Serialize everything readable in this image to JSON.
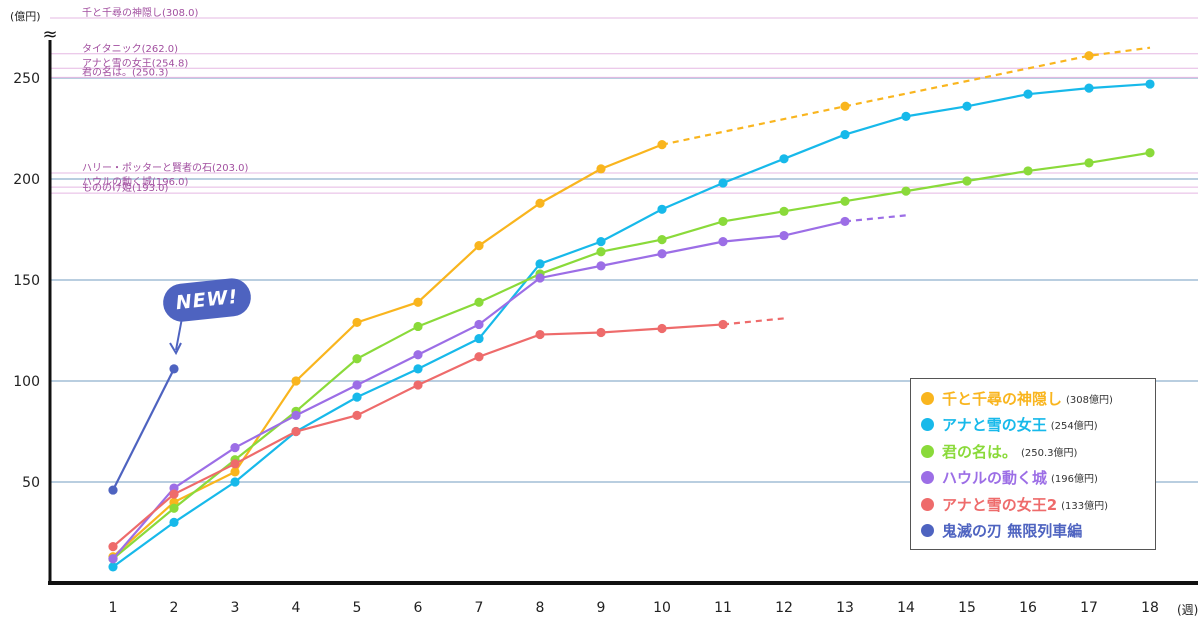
{
  "chart_data": {
    "type": "line",
    "x": [
      1,
      2,
      3,
      4,
      5,
      6,
      7,
      8,
      9,
      10,
      11,
      12,
      13,
      14,
      15,
      16,
      17,
      18
    ],
    "xticks": [
      "1",
      "2",
      "3",
      "4",
      "5",
      "6",
      "7",
      "8",
      "9",
      "10",
      "11",
      "12",
      "13",
      "14",
      "15",
      "16",
      "17",
      "18"
    ],
    "xlabel": "(週)",
    "ylabel": "(億円)",
    "ylim": [
      0,
      270
    ],
    "yticks": [
      50,
      100,
      150,
      200,
      250
    ],
    "axis_break_symbol": "≈",
    "grid": true,
    "legend_position": "bottom-right",
    "badge": "NEW!",
    "reference_lines": [
      {
        "label": "千と千尋の神隠し(308.0)",
        "value": 308.0,
        "position": "top-break"
      },
      {
        "label": "タイタニック(262.0)",
        "value": 262.0
      },
      {
        "label": "アナと雪の女王(254.8)",
        "value": 254.8
      },
      {
        "label": "君の名は。(250.3)",
        "value": 250.3
      },
      {
        "label": "ハリー・ポッターと賢者の石(203.0)",
        "value": 203.0
      },
      {
        "label": "ハウルの動く城(196.0)",
        "value": 196.0
      },
      {
        "label": "もののけ姫(193.0)",
        "value": 193.0
      }
    ],
    "series": [
      {
        "name": "千と千尋の神隠し",
        "total": "(308億円)",
        "color": "#f9b51e",
        "x": [
          1,
          2,
          3,
          4,
          5,
          6,
          7,
          8,
          9,
          10
        ],
        "values": [
          13,
          40,
          55,
          100,
          129,
          139,
          167,
          188,
          205,
          217
        ],
        "extra_points": [
          [
            13,
            236
          ],
          [
            17,
            261
          ]
        ],
        "dashed": [
          [
            10,
            217
          ],
          [
            13,
            236
          ],
          [
            17,
            261
          ],
          [
            18,
            265
          ]
        ]
      },
      {
        "name": "アナと雪の女王",
        "total": "(254億円)",
        "color": "#17b9ea",
        "x": [
          1,
          2,
          3,
          4,
          5,
          6,
          7,
          8,
          9,
          10,
          11,
          12,
          13,
          14,
          15,
          16,
          17,
          18
        ],
        "values": [
          8,
          30,
          50,
          75,
          92,
          106,
          121,
          158,
          169,
          185,
          198,
          210,
          222,
          231,
          236,
          242,
          245,
          247
        ],
        "extra_points": [],
        "dashed": []
      },
      {
        "name": "君の名は。",
        "total": "(250.3億円)",
        "color": "#8ada3a",
        "x": [
          1,
          2,
          3,
          4,
          5,
          6,
          7,
          8,
          9,
          10,
          11,
          12,
          13,
          14,
          15,
          16,
          17,
          18
        ],
        "values": [
          12,
          37,
          61,
          85,
          111,
          127,
          139,
          153,
          164,
          170,
          179,
          184,
          189,
          194,
          199,
          204,
          208,
          213
        ],
        "extra_points": [],
        "dashed": []
      },
      {
        "name": "ハウルの動く城",
        "total": "(196億円)",
        "color": "#9c6ee6",
        "x": [
          1,
          2,
          3,
          4,
          5,
          6,
          7,
          8,
          9,
          10,
          11,
          12,
          13
        ],
        "values": [
          12,
          47,
          67,
          83,
          98,
          113,
          128,
          151,
          157,
          163,
          169,
          172,
          179
        ],
        "extra_points": [],
        "dashed": [
          [
            13,
            179
          ],
          [
            14,
            182
          ]
        ]
      },
      {
        "name": "アナと雪の女王2",
        "total": "(133億円)",
        "color": "#ee6b6b",
        "x": [
          1,
          2,
          3,
          4,
          5,
          6,
          7,
          8,
          9,
          10,
          11
        ],
        "values": [
          18,
          44,
          59,
          75,
          83,
          98,
          112,
          123,
          124,
          126,
          128
        ],
        "extra_points": [],
        "dashed": [
          [
            11,
            128
          ],
          [
            12,
            131
          ]
        ]
      },
      {
        "name": "鬼滅の刃 無限列車編",
        "total": "",
        "color": "#4e63c0",
        "x": [
          1,
          2
        ],
        "values": [
          46,
          106
        ],
        "extra_points": [],
        "dashed": []
      }
    ]
  }
}
